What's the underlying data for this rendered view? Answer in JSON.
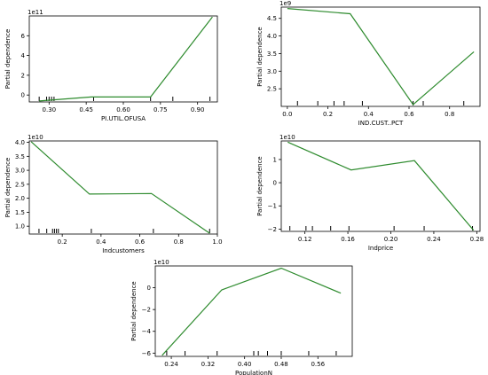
{
  "chart_data": [
    {
      "type": "line",
      "xlabel": "PI.UTIL.OFUSA",
      "ylabel": "Partial dependence",
      "y_offset_text": "1e11",
      "xlim": [
        0.22,
        0.98
      ],
      "ylim": [
        -0.7,
        8.0
      ],
      "xticks": [
        0.3,
        0.45,
        0.6,
        0.75,
        0.9
      ],
      "xtick_labels": [
        "0.30",
        "0.45",
        "0.60",
        "0.75",
        "0.90"
      ],
      "yticks": [
        0,
        2,
        4,
        6
      ],
      "ytick_labels": [
        "0",
        "2",
        "4",
        "6"
      ],
      "x": [
        0.26,
        0.47,
        0.71,
        0.96
      ],
      "y": [
        -0.6,
        -0.2,
        -0.2,
        7.9
      ],
      "deciles": [
        0.26,
        0.29,
        0.3,
        0.31,
        0.32,
        0.48,
        0.71,
        0.8,
        0.95
      ]
    },
    {
      "type": "line",
      "xlabel": "IND.CUST..PCT",
      "ylabel": "Partial dependence",
      "y_offset_text": "1e9",
      "xlim": [
        -0.03,
        0.95
      ],
      "ylim": [
        2.0,
        4.82
      ],
      "xticks": [
        0.0,
        0.2,
        0.4,
        0.6,
        0.8
      ],
      "xtick_labels": [
        "0.0",
        "0.2",
        "0.4",
        "0.6",
        "0.8"
      ],
      "yticks": [
        2.5,
        3.0,
        3.5,
        4.0,
        4.5
      ],
      "ytick_labels": [
        "2.5",
        "3.0",
        "3.5",
        "4.0",
        "4.5"
      ],
      "x": [
        0.0,
        0.31,
        0.62,
        0.92
      ],
      "y": [
        4.78,
        4.63,
        2.05,
        3.55
      ],
      "deciles": [
        0.05,
        0.15,
        0.23,
        0.28,
        0.37,
        0.62,
        0.67,
        0.87
      ]
    },
    {
      "type": "line",
      "xlabel": "Indcustomers",
      "ylabel": "Partial dependence",
      "y_offset_text": "1e10",
      "xlim": [
        0.03,
        1.0
      ],
      "ylim": [
        0.72,
        4.05
      ],
      "xticks": [
        0.2,
        0.4,
        0.6,
        0.8,
        1.0
      ],
      "xtick_labels": [
        "0.2",
        "0.4",
        "0.6",
        "0.8",
        "1.0"
      ],
      "yticks": [
        1.0,
        1.5,
        2.0,
        2.5,
        3.0,
        3.5,
        4.0
      ],
      "ytick_labels": [
        "1.0",
        "1.5",
        "2.0",
        "2.5",
        "3.0",
        "3.5",
        "4.0"
      ],
      "x": [
        0.04,
        0.34,
        0.66,
        0.96
      ],
      "y": [
        4.02,
        2.15,
        2.17,
        0.75
      ],
      "deciles": [
        0.08,
        0.12,
        0.15,
        0.16,
        0.17,
        0.18,
        0.35,
        0.67,
        0.96
      ]
    },
    {
      "type": "line",
      "xlabel": "Indprice",
      "ylabel": "Partial dependence",
      "y_offset_text": "1e10",
      "xlim": [
        0.098,
        0.283
      ],
      "ylim": [
        -2.1,
        1.8
      ],
      "xticks": [
        0.12,
        0.16,
        0.2,
        0.24,
        0.28
      ],
      "xtick_labels": [
        "0.12",
        "0.16",
        "0.20",
        "0.24",
        "0.28"
      ],
      "yticks": [
        -2,
        -1,
        0,
        1
      ],
      "ytick_labels": [
        "−2",
        "−1",
        "0",
        "1"
      ],
      "x": [
        0.104,
        0.163,
        0.222,
        0.277
      ],
      "y": [
        1.75,
        0.55,
        0.95,
        -2.05
      ],
      "deciles": [
        0.106,
        0.121,
        0.127,
        0.144,
        0.161,
        0.203,
        0.231,
        0.276
      ]
    },
    {
      "type": "line",
      "xlabel": "PopulationN",
      "ylabel": "Partial dependence",
      "y_offset_text": "1e10",
      "xlim": [
        0.205,
        0.635
      ],
      "ylim": [
        -6.3,
        2.0
      ],
      "xticks": [
        0.24,
        0.32,
        0.4,
        0.48,
        0.56
      ],
      "xtick_labels": [
        "0.24",
        "0.32",
        "0.40",
        "0.48",
        "0.56"
      ],
      "yticks": [
        -6,
        -4,
        -2,
        0
      ],
      "ytick_labels": [
        "−6",
        "−4",
        "−2",
        "0"
      ],
      "x": [
        0.22,
        0.35,
        0.48,
        0.61
      ],
      "y": [
        -6.2,
        -0.2,
        1.8,
        -0.5
      ],
      "deciles": [
        0.23,
        0.27,
        0.34,
        0.42,
        0.43,
        0.45,
        0.48,
        0.54,
        0.6
      ]
    }
  ]
}
